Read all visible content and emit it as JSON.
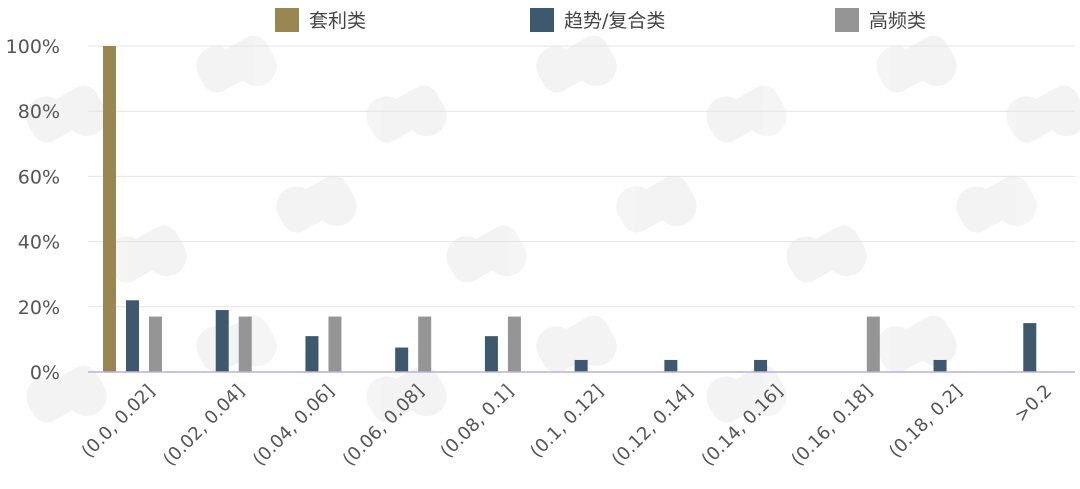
{
  "chart_data": {
    "type": "bar",
    "categories": [
      "(0.0, 0.02]",
      "(0.02, 0.04]",
      "(0.04, 0.06]",
      "(0.06, 0.08]",
      "(0.08, 0.1]",
      "(0.1, 0.12]",
      "(0.12, 0.14]",
      "(0.14, 0.16]",
      "(0.16, 0.18]",
      "(0.18, 0.2]",
      ">0.2"
    ],
    "series": [
      {
        "name": "套利类",
        "color": "#9a8650",
        "values": [
          100,
          0,
          0,
          0,
          0,
          0,
          0,
          0,
          0,
          0,
          0
        ]
      },
      {
        "name": "趋势/复合类",
        "color": "#3e586d",
        "values": [
          22,
          19,
          11,
          7.5,
          11,
          3.7,
          3.7,
          3.7,
          0,
          3.7,
          15
        ]
      },
      {
        "name": "高频类",
        "color": "#959595",
        "values": [
          17,
          17,
          17,
          17,
          17,
          0,
          0,
          0,
          17,
          0,
          0
        ]
      }
    ],
    "ylim": [
      0,
      100
    ],
    "yticks": [
      "0%",
      "20%",
      "40%",
      "60%",
      "80%",
      "100%"
    ],
    "ytick_values": [
      0,
      20,
      40,
      60,
      80,
      100
    ],
    "grid": true,
    "legend_position": "top"
  }
}
